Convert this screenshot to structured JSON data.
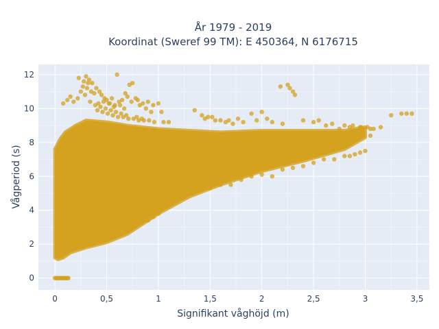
{
  "chart_data": {
    "type": "scatter",
    "title_line1": "År 1979 - 2019",
    "title_line2": "Koordinat (Sweref 99 TM): E 450364, N 6176715",
    "xlabel": "Signifikant våghöjd (m)",
    "ylabel": "Vågperiod (s)",
    "xlim": [
      -0.16,
      3.62
    ],
    "ylim": [
      -0.7,
      12.6
    ],
    "x_ticks": [
      0,
      0.5,
      1,
      1.5,
      2,
      2.5,
      3,
      3.5
    ],
    "x_tick_labels": [
      "0",
      "0,5",
      "1",
      "1,5",
      "2",
      "2,5",
      "3",
      "3,5"
    ],
    "y_ticks": [
      0,
      2,
      4,
      6,
      8,
      10,
      12
    ],
    "y_tick_labels": [
      "0",
      "2",
      "4",
      "6",
      "8",
      "10",
      "12"
    ],
    "grid": true,
    "plot_background": "#e5ecf6",
    "grid_color": "#ffffff",
    "marker_color": "#d4a21f",
    "marker_opacity": 0.75,
    "density_band": {
      "x_upper": [
        0.0,
        0.05,
        0.1,
        0.2,
        0.3,
        0.5,
        0.7,
        1.0,
        1.3,
        1.6,
        2.0,
        2.4,
        2.8,
        3.0
      ],
      "y_upper": [
        7.6,
        8.2,
        8.6,
        9.0,
        9.3,
        9.2,
        9.0,
        8.8,
        8.7,
        8.6,
        8.7,
        8.7,
        8.7,
        8.9
      ],
      "x_lower": [
        0.0,
        0.03,
        0.08,
        0.15,
        0.3,
        0.5,
        0.7,
        1.0,
        1.3,
        1.6,
        2.0,
        2.4,
        2.8,
        3.0
      ],
      "y_lower": [
        1.2,
        1.1,
        1.2,
        1.5,
        1.8,
        2.1,
        2.6,
        3.8,
        4.8,
        5.5,
        6.3,
        6.9,
        7.6,
        8.3
      ]
    },
    "series": [
      {
        "x": [
          0.08,
          0.12,
          0.15,
          0.18,
          0.22,
          0.25,
          0.28,
          0.3,
          0.33,
          0.36,
          0.4,
          0.43,
          0.45,
          0.48,
          0.5,
          0.53,
          0.55,
          0.58,
          0.6,
          0.62,
          0.65,
          0.68,
          0.7,
          0.72,
          0.75,
          0.78,
          0.8,
          0.85,
          0.9,
          0.95,
          1.0,
          0.23,
          0.27,
          0.31,
          0.35,
          0.38,
          0.42,
          0.47,
          0.52,
          0.57,
          0.63,
          0.67,
          0.74,
          0.82,
          0.88,
          0.93,
          0.29,
          0.34,
          0.39,
          0.44,
          0.49,
          0.54,
          0.59,
          0.64,
          0.69,
          0.79,
          0.84,
          1.03,
          0.32,
          0.41,
          0.46,
          0.51,
          0.56,
          0.61,
          0.66,
          0.71,
          0.76,
          0.81,
          0.86,
          0.91,
          0.96,
          1.05,
          1.1
        ],
        "y": [
          10.3,
          10.5,
          10.7,
          10.4,
          10.6,
          11.0,
          11.6,
          11.9,
          11.7,
          11.5,
          11.2,
          11.0,
          10.8,
          10.6,
          10.5,
          10.3,
          10.6,
          10.2,
          12.0,
          10.4,
          10.5,
          10.9,
          10.7,
          11.4,
          11.5,
          10.6,
          10.5,
          10.3,
          10.4,
          10.2,
          10.3,
          11.8,
          11.3,
          11.2,
          11.0,
          10.9,
          10.3,
          10.4,
          10.3,
          10.1,
          10.2,
          10.0,
          10.4,
          10.2,
          10.0,
          9.8,
          10.8,
          10.4,
          10.2,
          10.1,
          10.0,
          9.9,
          9.8,
          9.7,
          9.6,
          9.5,
          9.4,
          9.8,
          11.5,
          9.9,
          9.8,
          9.7,
          9.6,
          9.5,
          9.5,
          9.4,
          9.4,
          9.3,
          9.3,
          9.3,
          9.2,
          9.2,
          9.2
        ]
      },
      {
        "x": [
          1.35,
          1.42,
          1.48,
          1.6,
          1.65,
          1.72,
          1.9,
          2.0,
          2.18,
          2.25,
          2.3,
          2.5,
          2.62,
          2.75,
          2.85,
          2.9,
          2.95,
          3.05,
          3.15,
          3.25,
          3.35,
          3.4,
          3.45,
          2.27,
          2.32,
          1.55,
          1.77,
          2.05,
          2.4,
          2.55,
          2.68,
          2.8,
          2.88,
          2.96,
          3.02,
          3.08,
          1.45,
          1.52,
          1.68,
          1.82,
          1.95,
          2.1,
          2.2
        ],
        "y": [
          9.9,
          9.6,
          9.5,
          9.3,
          9.2,
          9.1,
          9.7,
          9.8,
          11.3,
          11.4,
          11.0,
          9.2,
          9.0,
          8.8,
          8.9,
          8.7,
          8.9,
          8.8,
          8.9,
          9.6,
          9.7,
          9.7,
          9.7,
          11.2,
          10.8,
          9.3,
          9.4,
          9.4,
          9.3,
          9.3,
          9.1,
          9.0,
          9.0,
          8.9,
          8.9,
          8.8,
          9.4,
          9.5,
          9.3,
          9.2,
          9.3,
          9.2,
          9.1
        ]
      },
      {
        "x": [
          2.85,
          2.95,
          3.0,
          3.05,
          2.9,
          2.8,
          2.7,
          2.6,
          2.5,
          2.4,
          2.3,
          2.2,
          2.1,
          2.0,
          1.9,
          1.8,
          1.7,
          1.6,
          1.5,
          1.4,
          1.3,
          1.2,
          1.1,
          1.0,
          0.95,
          0.9,
          0.85,
          0.8,
          0.76,
          0.72,
          0.7,
          0.66,
          0.62,
          0.6
        ],
        "y": [
          7.2,
          7.4,
          7.5,
          8.4,
          7.3,
          7.2,
          7.0,
          7.0,
          6.8,
          6.6,
          6.5,
          6.4,
          6.0,
          6.1,
          6.0,
          5.8,
          5.5,
          5.5,
          5.3,
          5.2,
          5.0,
          4.9,
          4.6,
          3.8,
          3.6,
          3.4,
          3.6,
          3.5,
          3.3,
          3.2,
          3.3,
          3.1,
          3.0,
          2.7
        ]
      },
      {
        "x": [
          0.0,
          0.01,
          0.02,
          0.03,
          0.04,
          0.05,
          0.06,
          0.07,
          0.08,
          0.09,
          0.1,
          0.11,
          0.12,
          0.13
        ],
        "y": [
          0,
          0,
          0,
          0,
          0,
          0,
          0,
          0,
          0,
          0,
          0,
          0,
          0,
          0
        ]
      }
    ]
  }
}
